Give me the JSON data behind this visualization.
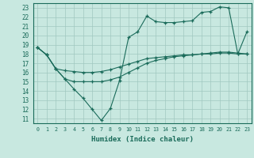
{
  "title": "",
  "xlabel": "Humidex (Indice chaleur)",
  "bg_color": "#c8e8e0",
  "line_color": "#1a6b5a",
  "grid_color": "#a0c8c0",
  "xlim": [
    -0.5,
    23.5
  ],
  "ylim": [
    10.5,
    23.5
  ],
  "xticks": [
    0,
    1,
    2,
    3,
    4,
    5,
    6,
    7,
    8,
    9,
    10,
    11,
    12,
    13,
    14,
    15,
    16,
    17,
    18,
    19,
    20,
    21,
    22,
    23
  ],
  "yticks": [
    11,
    12,
    13,
    14,
    15,
    16,
    17,
    18,
    19,
    20,
    21,
    22,
    23
  ],
  "line1_x": [
    0,
    1,
    2,
    3,
    4,
    5,
    6,
    7,
    8,
    9,
    10,
    11,
    12,
    13,
    14,
    15,
    16,
    17,
    18,
    19,
    20,
    21,
    22,
    23
  ],
  "line1_y": [
    18.7,
    17.9,
    16.4,
    15.3,
    14.2,
    13.2,
    12.0,
    10.8,
    12.1,
    15.1,
    19.8,
    20.4,
    22.1,
    21.5,
    21.4,
    21.4,
    21.5,
    21.6,
    22.5,
    22.6,
    23.1,
    23.0,
    18.0,
    20.4
  ],
  "line2_x": [
    0,
    1,
    2,
    3,
    4,
    5,
    6,
    7,
    8,
    9,
    10,
    11,
    12,
    13,
    14,
    15,
    16,
    17,
    18,
    19,
    20,
    21,
    22,
    23
  ],
  "line2_y": [
    18.7,
    17.9,
    16.4,
    15.3,
    15.0,
    15.0,
    15.0,
    15.0,
    15.2,
    15.5,
    16.0,
    16.5,
    17.0,
    17.3,
    17.5,
    17.7,
    17.8,
    17.9,
    18.0,
    18.1,
    18.2,
    18.2,
    18.1,
    18.0
  ],
  "line3_x": [
    0,
    1,
    2,
    3,
    4,
    5,
    6,
    7,
    8,
    9,
    10,
    11,
    12,
    13,
    14,
    15,
    16,
    17,
    18,
    19,
    20,
    21,
    22,
    23
  ],
  "line3_y": [
    18.7,
    17.9,
    16.4,
    16.2,
    16.1,
    16.0,
    16.0,
    16.1,
    16.3,
    16.6,
    16.9,
    17.2,
    17.5,
    17.6,
    17.7,
    17.8,
    17.9,
    17.9,
    18.0,
    18.0,
    18.1,
    18.1,
    18.0,
    18.0
  ]
}
